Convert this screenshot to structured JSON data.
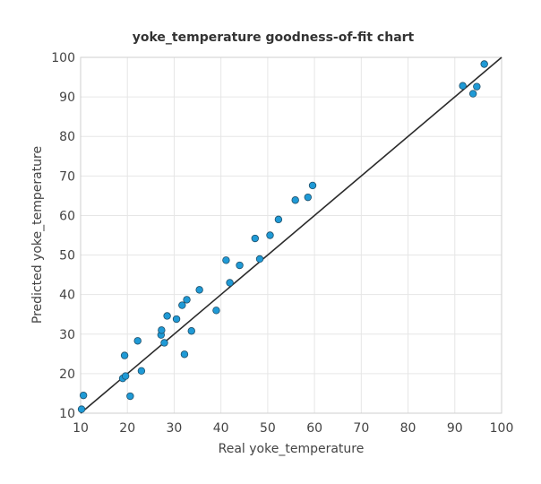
{
  "chart_data": {
    "type": "scatter",
    "title": "yoke_temperature goodness-of-fit chart",
    "xlabel": "Real yoke_temperature",
    "ylabel": "Predicted yoke_temperature",
    "xlim": [
      10,
      100
    ],
    "ylim": [
      10,
      100
    ],
    "xticks": [
      10,
      20,
      30,
      40,
      50,
      60,
      70,
      80,
      90,
      100
    ],
    "yticks": [
      10,
      20,
      30,
      40,
      50,
      60,
      70,
      80,
      90,
      100
    ],
    "grid": true,
    "reference_line": {
      "from": [
        10,
        10
      ],
      "to": [
        100,
        100
      ]
    },
    "colors": {
      "point_fill": "#1f9ad6",
      "point_stroke": "#20506a",
      "line": "#2b2b2b",
      "grid": "#e6e6e6"
    },
    "points": [
      [
        10.2,
        11.0
      ],
      [
        10.6,
        14.5
      ],
      [
        19.0,
        18.8
      ],
      [
        19.4,
        24.6
      ],
      [
        19.6,
        19.4
      ],
      [
        20.6,
        14.3
      ],
      [
        22.2,
        28.3
      ],
      [
        23.0,
        20.7
      ],
      [
        27.2,
        29.8
      ],
      [
        27.3,
        31.0
      ],
      [
        27.9,
        27.8
      ],
      [
        28.5,
        34.6
      ],
      [
        30.5,
        33.8
      ],
      [
        31.7,
        37.3
      ],
      [
        32.2,
        24.9
      ],
      [
        32.7,
        38.7
      ],
      [
        33.7,
        30.8
      ],
      [
        35.4,
        41.2
      ],
      [
        39.0,
        36.0
      ],
      [
        41.1,
        48.7
      ],
      [
        41.9,
        43.0
      ],
      [
        44.0,
        47.4
      ],
      [
        47.3,
        54.2
      ],
      [
        48.3,
        49.0
      ],
      [
        50.5,
        55.0
      ],
      [
        52.3,
        59.0
      ],
      [
        55.9,
        63.9
      ],
      [
        58.6,
        64.6
      ],
      [
        59.6,
        67.6
      ],
      [
        91.7,
        92.8
      ],
      [
        93.9,
        90.8
      ],
      [
        94.7,
        92.6
      ],
      [
        96.3,
        98.3
      ]
    ]
  }
}
